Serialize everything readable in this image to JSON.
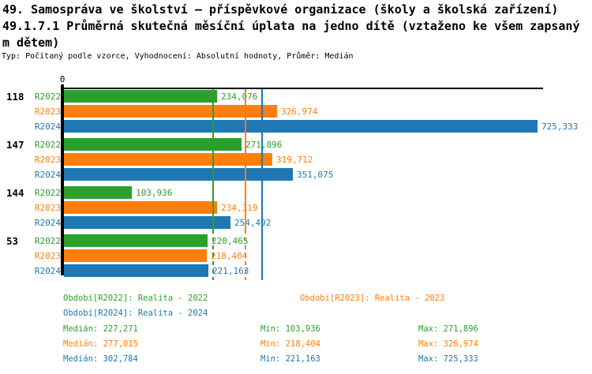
{
  "header": {
    "title_line1": "49. Samospráva ve školství – příspěvkové organizace (školy a školská zařízení)",
    "title_line2": "49.1.7.1 Průměrná skutečná měsíční úplata na jedno dítě (vztaženo ke všem zapsaný",
    "title_line3": "m dětem)",
    "meta": "Typ: Počítaný podle vzorce, Vyhodnocení: Absolutní hodnoty, Průměr: Medián"
  },
  "chart_data": {
    "type": "bar",
    "orientation": "horizontal",
    "axis": {
      "origin_label": "0",
      "xmin": 0,
      "xmax": 725333,
      "grid": false
    },
    "categories": [
      "118",
      "147",
      "144",
      "53"
    ],
    "row_labels": [
      "R2022",
      "R2023",
      "R2024"
    ],
    "series": [
      {
        "name": "R2022",
        "legend": "Období[R2022]: Realita - 2022",
        "color": "#2ca02c",
        "values": [
          234076,
          271896,
          103936,
          220465
        ],
        "value_labels": [
          "234,076",
          "271,896",
          "103,936",
          "220,465"
        ],
        "median": 227271,
        "stats": {
          "median": "227,271",
          "min": "103,936",
          "max": "271,896"
        }
      },
      {
        "name": "R2023",
        "legend": "Období[R2023]: Realita - 2023",
        "color": "#ff7f0e",
        "values": [
          326974,
          319712,
          234319,
          218404
        ],
        "value_labels": [
          "326,974",
          "319,712",
          "234,319",
          "218,404"
        ],
        "median": 277015,
        "stats": {
          "median": "277,015",
          "min": "218,404",
          "max": "326,974"
        }
      },
      {
        "name": "R2024",
        "legend": "Období[R2024]: Realita - 2024",
        "color": "#1f77b4",
        "values": [
          725333,
          351075,
          254492,
          221163
        ],
        "value_labels": [
          "725,333",
          "351,075",
          "254,492",
          "221,163"
        ],
        "median": 302784,
        "stats": {
          "median": "302,784",
          "min": "221,163",
          "max": "725,333"
        }
      }
    ],
    "stat_labels": {
      "median": "Medián",
      "min": "Min",
      "max": "Max"
    },
    "legend_position": "bottom",
    "median_lines": true
  }
}
